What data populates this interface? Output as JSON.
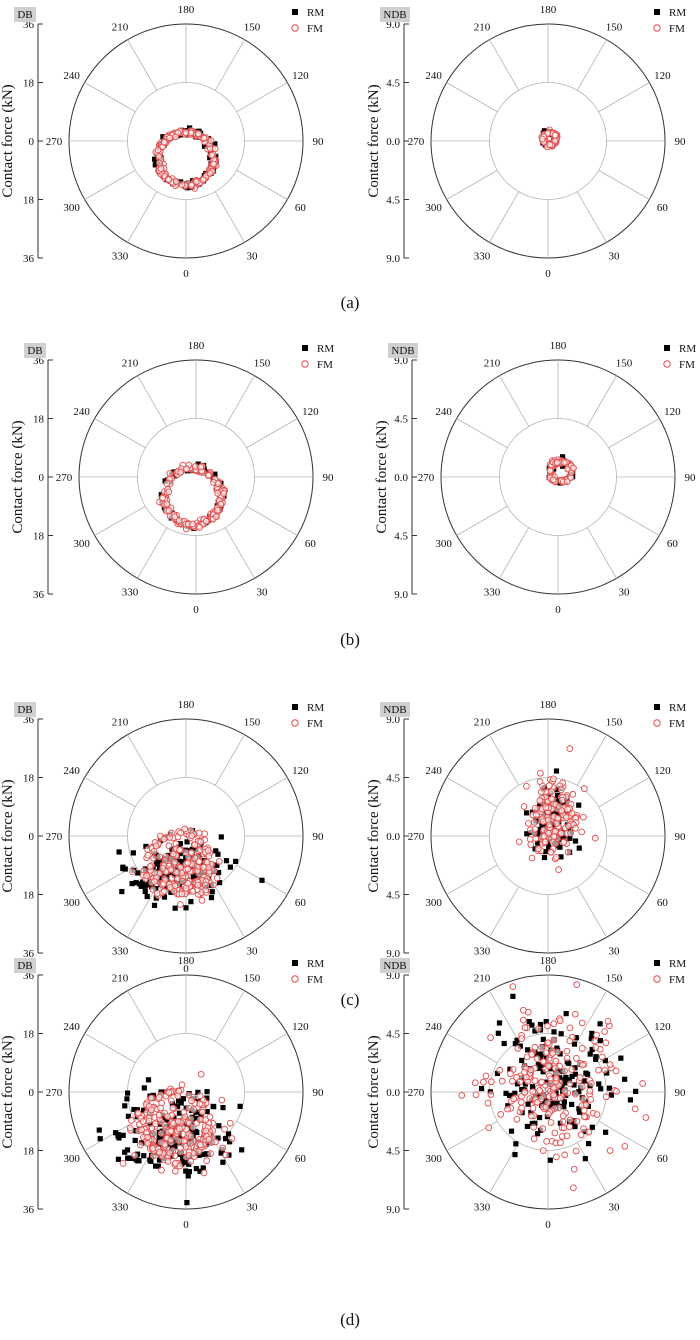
{
  "figure": {
    "y_label": "Contact force (kN)",
    "legend": [
      "RM",
      "FM"
    ],
    "panel_labels": [
      "(a)",
      "(b)",
      "(c)",
      "(d)"
    ],
    "colors": {
      "rm": "#000000",
      "fm": "#e24b4b",
      "grid": "#b4b4b4",
      "axis": "#333333",
      "tag_bg": "#d0d0d0"
    }
  },
  "chart_data": [
    {
      "type": "scatter",
      "coordinate_system": "polar",
      "tag": "DB",
      "panel": "(a)",
      "radial_range": [
        0,
        36
      ],
      "radial_ticks": [
        "36",
        "18",
        "0",
        "18",
        "36"
      ],
      "angle_ticks": [
        0,
        30,
        60,
        90,
        120,
        150,
        180,
        210,
        240,
        270,
        300,
        330
      ],
      "series": [
        {
          "name": "RM",
          "marker": "filled-square",
          "distribution": "ring",
          "center_x": 0,
          "center_y": -5.5,
          "radius": 8.5,
          "spread": 1.3,
          "count": 90
        },
        {
          "name": "FM",
          "marker": "open-circle",
          "distribution": "ring",
          "center_x": 0,
          "center_y": -5.5,
          "radius": 8.3,
          "spread": 0.9,
          "count": 170
        }
      ]
    },
    {
      "type": "scatter",
      "coordinate_system": "polar",
      "tag": "NDB",
      "panel": "(a)",
      "radial_range": [
        0,
        9
      ],
      "radial_ticks": [
        "9.0",
        "4.5",
        "0.0",
        "4.5",
        "9.0"
      ],
      "angle_ticks": [
        0,
        30,
        60,
        90,
        120,
        150,
        180,
        210,
        240,
        270,
        300,
        330
      ],
      "series": [
        {
          "name": "RM",
          "marker": "filled-square",
          "distribution": "ring",
          "center_x": 0.1,
          "center_y": 0.2,
          "radius": 0.5,
          "spread": 0.15,
          "count": 40
        },
        {
          "name": "FM",
          "marker": "open-circle",
          "distribution": "ring",
          "center_x": 0.1,
          "center_y": 0.2,
          "radius": 0.5,
          "spread": 0.12,
          "count": 60
        }
      ]
    },
    {
      "type": "scatter",
      "coordinate_system": "polar",
      "tag": "DB",
      "panel": "(b)",
      "radial_range": [
        0,
        36
      ],
      "radial_ticks": [
        "36",
        "18",
        "0",
        "18",
        "36"
      ],
      "angle_ticks": [
        0,
        30,
        60,
        90,
        120,
        150,
        180,
        210,
        240,
        270,
        300,
        330
      ],
      "series": [
        {
          "name": "RM",
          "marker": "filled-square",
          "distribution": "ring",
          "center_x": -1,
          "center_y": -6,
          "radius": 9,
          "spread": 1.2,
          "count": 80
        },
        {
          "name": "FM",
          "marker": "open-circle",
          "distribution": "ring",
          "center_x": -1,
          "center_y": -6,
          "radius": 8.8,
          "spread": 1.0,
          "count": 180
        }
      ]
    },
    {
      "type": "scatter",
      "coordinate_system": "polar",
      "tag": "NDB",
      "panel": "(b)",
      "radial_range": [
        0,
        9
      ],
      "radial_ticks": [
        "9.0",
        "4.5",
        "0.0",
        "4.5",
        "9.0"
      ],
      "angle_ticks": [
        0,
        30,
        60,
        90,
        120,
        150,
        180,
        210,
        240,
        270,
        300,
        330
      ],
      "series": [
        {
          "name": "RM",
          "marker": "filled-square",
          "distribution": "ring",
          "center_x": 0.2,
          "center_y": 0.4,
          "radius": 0.8,
          "spread": 0.25,
          "count": 40
        },
        {
          "name": "FM",
          "marker": "open-circle",
          "distribution": "ring",
          "center_x": 0.2,
          "center_y": 0.4,
          "radius": 0.8,
          "spread": 0.2,
          "count": 70
        }
      ]
    },
    {
      "type": "scatter",
      "coordinate_system": "polar",
      "tag": "DB",
      "panel": "(c)",
      "radial_range": [
        0,
        36
      ],
      "radial_ticks": [
        "36",
        "18",
        "0",
        "18",
        "36"
      ],
      "angle_ticks": [
        0,
        30,
        60,
        90,
        120,
        150,
        180,
        210,
        240,
        270,
        300,
        330
      ],
      "series": [
        {
          "name": "RM",
          "marker": "filled-square",
          "distribution": "blob",
          "center_x": -4,
          "center_y": -11,
          "spread_x": 7,
          "spread_y": 5,
          "count": 170
        },
        {
          "name": "FM",
          "marker": "open-circle",
          "distribution": "ring+blob",
          "center_x": -2,
          "center_y": -8,
          "radius": 9,
          "spread": 4,
          "count": 230
        }
      ]
    },
    {
      "type": "scatter",
      "coordinate_system": "polar",
      "tag": "NDB",
      "panel": "(c)",
      "radial_range": [
        0,
        9
      ],
      "radial_ticks": [
        "9.0",
        "4.5",
        "0.0",
        "4.5",
        "9.0"
      ],
      "angle_ticks": [
        0,
        30,
        60,
        90,
        120,
        150,
        180,
        210,
        240,
        270,
        300,
        330
      ],
      "series": [
        {
          "name": "RM",
          "marker": "filled-square",
          "distribution": "blob",
          "center_x": 0.4,
          "center_y": 1.2,
          "spread_x": 0.9,
          "spread_y": 1.3,
          "count": 120
        },
        {
          "name": "FM",
          "marker": "open-circle",
          "distribution": "blob",
          "center_x": 0.4,
          "center_y": 1.1,
          "spread_x": 1.0,
          "spread_y": 1.4,
          "count": 170
        }
      ]
    },
    {
      "type": "scatter",
      "coordinate_system": "polar",
      "tag": "DB",
      "panel": "(d)",
      "radial_range": [
        0,
        36
      ],
      "radial_ticks": [
        "36",
        "18",
        "0",
        "18",
        "36"
      ],
      "angle_ticks": [
        0,
        30,
        60,
        90,
        120,
        150,
        180,
        210,
        240,
        270,
        300,
        330
      ],
      "series": [
        {
          "name": "RM",
          "marker": "filled-square",
          "distribution": "blob",
          "center_x": -4,
          "center_y": -13,
          "spread_x": 9,
          "spread_y": 7,
          "count": 190
        },
        {
          "name": "FM",
          "marker": "open-circle",
          "distribution": "ring+blob",
          "center_x": -3,
          "center_y": -10,
          "radius": 10,
          "spread": 5,
          "count": 260
        }
      ]
    },
    {
      "type": "scatter",
      "coordinate_system": "polar",
      "tag": "NDB",
      "panel": "(d)",
      "radial_range": [
        0,
        9
      ],
      "radial_ticks": [
        "9.0",
        "4.5",
        "0.0",
        "4.5",
        "9.0"
      ],
      "angle_ticks": [
        0,
        30,
        60,
        90,
        120,
        150,
        180,
        210,
        240,
        270,
        300,
        330
      ],
      "series": [
        {
          "name": "RM",
          "marker": "filled-square",
          "distribution": "blob",
          "center_x": 0.5,
          "center_y": 0.8,
          "spread_x": 2.1,
          "spread_y": 2.4,
          "count": 160
        },
        {
          "name": "FM",
          "marker": "open-circle",
          "distribution": "blob",
          "center_x": 0.6,
          "center_y": 0.8,
          "spread_x": 2.3,
          "spread_y": 2.6,
          "count": 220
        }
      ]
    }
  ]
}
